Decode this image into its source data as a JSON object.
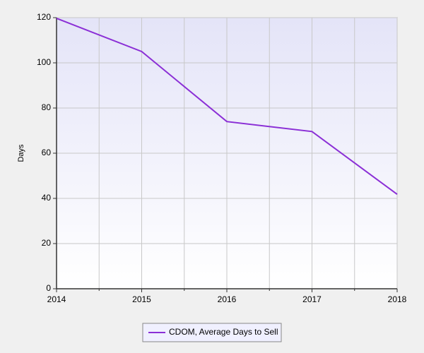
{
  "chart_data": {
    "type": "line",
    "x": [
      2014,
      2015,
      2016,
      2017,
      2018
    ],
    "series": [
      {
        "name": "CDOM, Average Days to Sell",
        "color": "#8b2fd6",
        "values": [
          119.7,
          105,
          74,
          69.6,
          41.8
        ]
      }
    ],
    "xlim": [
      2014,
      2018
    ],
    "xticks": [
      2014,
      2015,
      2016,
      2017,
      2018
    ],
    "ylim": [
      0,
      120
    ],
    "yticks": [
      0,
      20,
      40,
      60,
      80,
      100,
      120
    ],
    "y_label": "Days",
    "grid": true,
    "legend": "bottom"
  }
}
